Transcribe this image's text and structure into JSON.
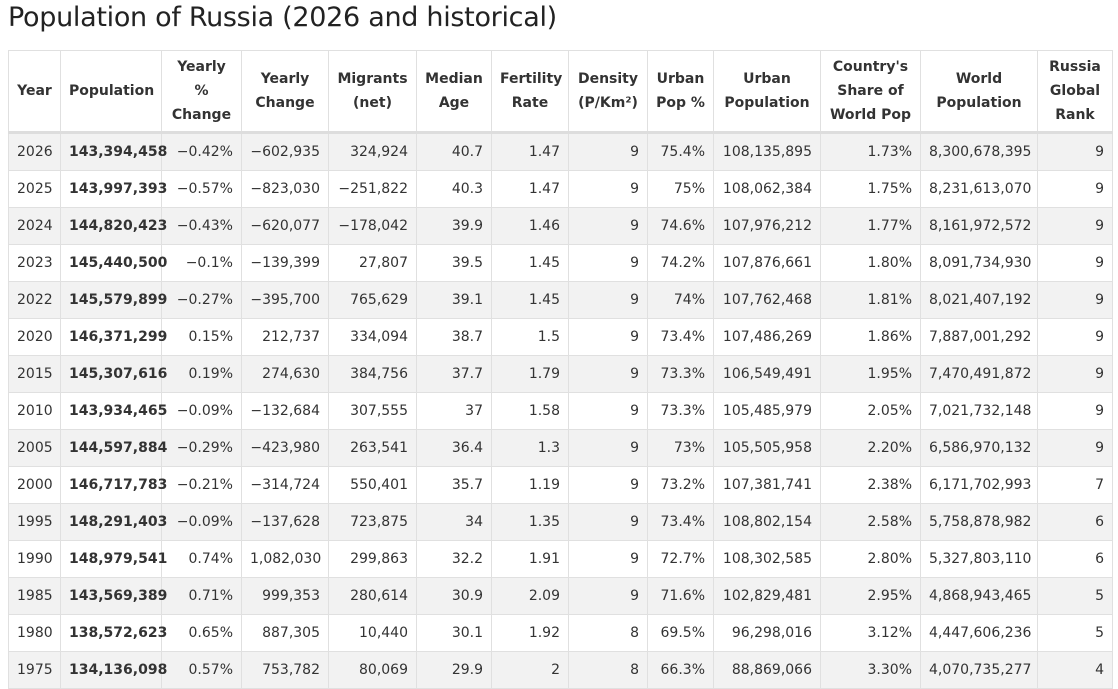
{
  "title": "Population of Russia (2026 and historical)",
  "columns": [
    "Year",
    "Population",
    "Yearly %\nChange",
    "Yearly\nChange",
    "Migrants\n(net)",
    "Median\nAge",
    "Fertility\nRate",
    "Density\n(P/Km²)",
    "Urban\nPop %",
    "Urban\nPopulation",
    "Country's\nShare of\nWorld Pop",
    "World\nPopulation",
    "Russia\nGlobal\nRank"
  ],
  "rows": [
    [
      "2026",
      "143,394,458",
      "−0.42%",
      "−602,935",
      "324,924",
      "40.7",
      "1.47",
      "9",
      "75.4%",
      "108,135,895",
      "1.73%",
      "8,300,678,395",
      "9"
    ],
    [
      "2025",
      "143,997,393",
      "−0.57%",
      "−823,030",
      "−251,822",
      "40.3",
      "1.47",
      "9",
      "75%",
      "108,062,384",
      "1.75%",
      "8,231,613,070",
      "9"
    ],
    [
      "2024",
      "144,820,423",
      "−0.43%",
      "−620,077",
      "−178,042",
      "39.9",
      "1.46",
      "9",
      "74.6%",
      "107,976,212",
      "1.77%",
      "8,161,972,572",
      "9"
    ],
    [
      "2023",
      "145,440,500",
      "−0.1%",
      "−139,399",
      "27,807",
      "39.5",
      "1.45",
      "9",
      "74.2%",
      "107,876,661",
      "1.80%",
      "8,091,734,930",
      "9"
    ],
    [
      "2022",
      "145,579,899",
      "−0.27%",
      "−395,700",
      "765,629",
      "39.1",
      "1.45",
      "9",
      "74%",
      "107,762,468",
      "1.81%",
      "8,021,407,192",
      "9"
    ],
    [
      "2020",
      "146,371,299",
      "0.15%",
      "212,737",
      "334,094",
      "38.7",
      "1.5",
      "9",
      "73.4%",
      "107,486,269",
      "1.86%",
      "7,887,001,292",
      "9"
    ],
    [
      "2015",
      "145,307,616",
      "0.19%",
      "274,630",
      "384,756",
      "37.7",
      "1.79",
      "9",
      "73.3%",
      "106,549,491",
      "1.95%",
      "7,470,491,872",
      "9"
    ],
    [
      "2010",
      "143,934,465",
      "−0.09%",
      "−132,684",
      "307,555",
      "37",
      "1.58",
      "9",
      "73.3%",
      "105,485,979",
      "2.05%",
      "7,021,732,148",
      "9"
    ],
    [
      "2005",
      "144,597,884",
      "−0.29%",
      "−423,980",
      "263,541",
      "36.4",
      "1.3",
      "9",
      "73%",
      "105,505,958",
      "2.20%",
      "6,586,970,132",
      "9"
    ],
    [
      "2000",
      "146,717,783",
      "−0.21%",
      "−314,724",
      "550,401",
      "35.7",
      "1.19",
      "9",
      "73.2%",
      "107,381,741",
      "2.38%",
      "6,171,702,993",
      "7"
    ],
    [
      "1995",
      "148,291,403",
      "−0.09%",
      "−137,628",
      "723,875",
      "34",
      "1.35",
      "9",
      "73.4%",
      "108,802,154",
      "2.58%",
      "5,758,878,982",
      "6"
    ],
    [
      "1990",
      "148,979,541",
      "0.74%",
      "1,082,030",
      "299,863",
      "32.2",
      "1.91",
      "9",
      "72.7%",
      "108,302,585",
      "2.80%",
      "5,327,803,110",
      "6"
    ],
    [
      "1985",
      "143,569,389",
      "0.71%",
      "999,353",
      "280,614",
      "30.9",
      "2.09",
      "9",
      "71.6%",
      "102,829,481",
      "2.95%",
      "4,868,943,465",
      "5"
    ],
    [
      "1980",
      "138,572,623",
      "0.65%",
      "887,305",
      "10,440",
      "30.1",
      "1.92",
      "8",
      "69.5%",
      "96,298,016",
      "3.12%",
      "4,447,606,236",
      "5"
    ],
    [
      "1975",
      "134,136,098",
      "0.57%",
      "753,782",
      "80,069",
      "29.9",
      "2",
      "8",
      "66.3%",
      "88,869,066",
      "3.30%",
      "4,070,735,277",
      "4"
    ]
  ]
}
